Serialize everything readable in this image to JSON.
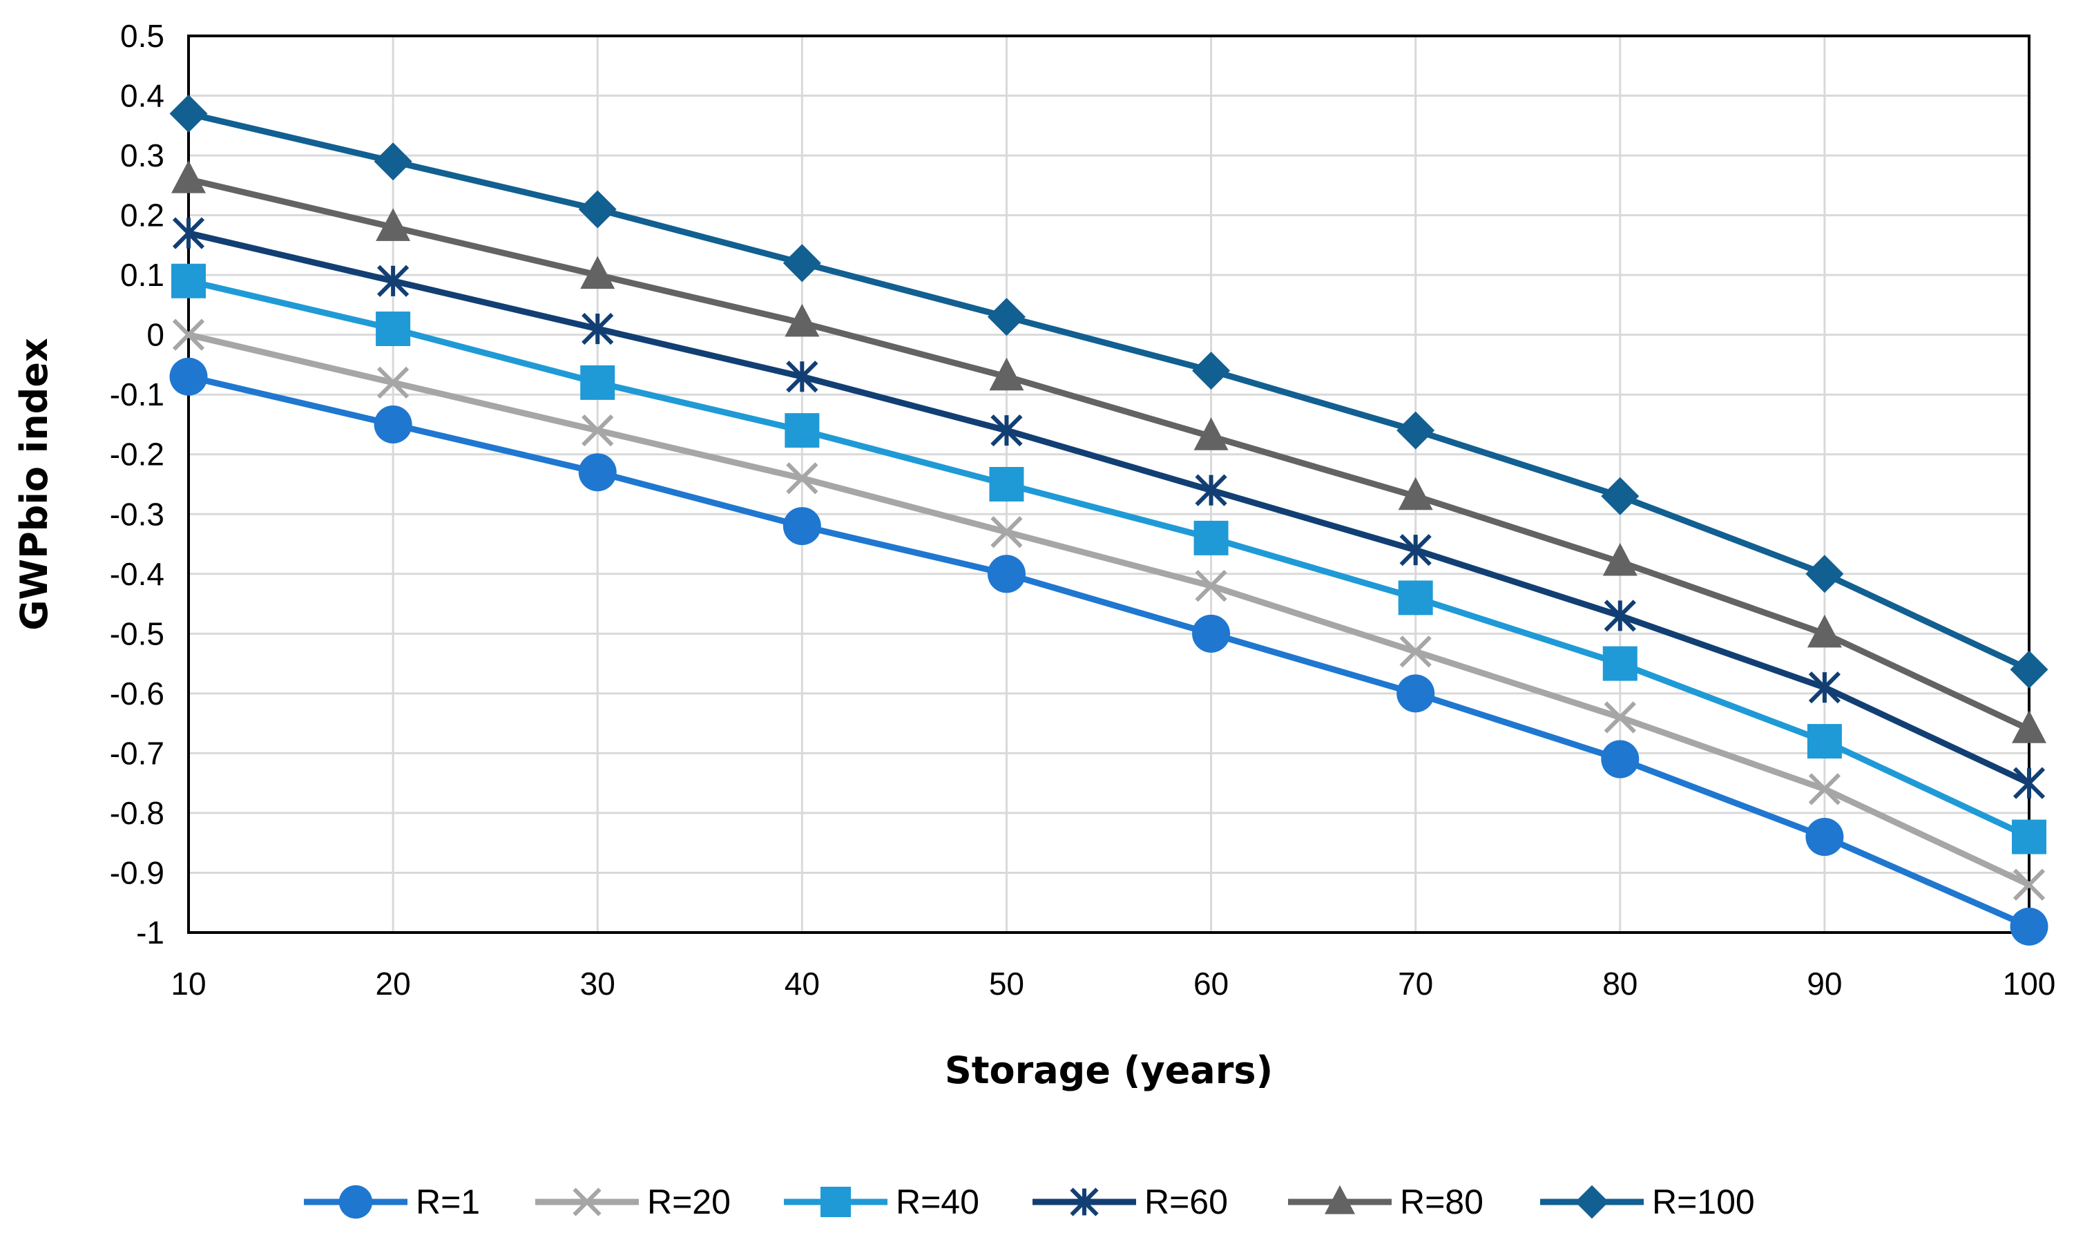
{
  "chart_data": {
    "type": "line",
    "title": "",
    "xlabel": "Storage (years)",
    "ylabel": "GWPbio index",
    "x": [
      10,
      20,
      30,
      40,
      50,
      60,
      70,
      80,
      90,
      100
    ],
    "xlim": [
      10,
      100
    ],
    "ylim": [
      -1,
      0.5
    ],
    "ytick_step": 0.1,
    "x_tick_labels": [
      "10",
      "20",
      "30",
      "40",
      "50",
      "60",
      "70",
      "80",
      "90",
      "100"
    ],
    "y_tick_labels": [
      "0.5",
      "0.4",
      "0.3",
      "0.2",
      "0.1",
      "0",
      "-0.1",
      "-0.2",
      "-0.3",
      "-0.4",
      "-0.5",
      "-0.6",
      "-0.7",
      "-0.8",
      "-0.9",
      "-1"
    ],
    "grid": true,
    "legend_position": "bottom",
    "series": [
      {
        "name": "R=1",
        "marker": "circle",
        "color": "#1f77d0",
        "values": [
          -0.07,
          -0.15,
          -0.23,
          -0.32,
          -0.4,
          -0.5,
          -0.6,
          -0.71,
          -0.84,
          -0.99
        ]
      },
      {
        "name": "R=20",
        "marker": "x",
        "color": "#a6a6a6",
        "values": [
          0.0,
          -0.08,
          -0.16,
          -0.24,
          -0.33,
          -0.42,
          -0.53,
          -0.64,
          -0.76,
          -0.92
        ]
      },
      {
        "name": "R=40",
        "marker": "square",
        "color": "#1f9ad6",
        "values": [
          0.09,
          0.01,
          -0.08,
          -0.16,
          -0.25,
          -0.34,
          -0.44,
          -0.55,
          -0.68,
          -0.84
        ]
      },
      {
        "name": "R=60",
        "marker": "star",
        "color": "#123f73",
        "values": [
          0.17,
          0.09,
          0.01,
          -0.07,
          -0.16,
          -0.26,
          -0.36,
          -0.47,
          -0.59,
          -0.75
        ]
      },
      {
        "name": "R=80",
        "marker": "triangle",
        "color": "#636363",
        "values": [
          0.26,
          0.18,
          0.1,
          0.02,
          -0.07,
          -0.17,
          -0.27,
          -0.38,
          -0.5,
          -0.66
        ]
      },
      {
        "name": "R=100",
        "marker": "diamond",
        "color": "#125f91",
        "values": [
          0.37,
          0.29,
          0.21,
          0.12,
          0.03,
          -0.06,
          -0.16,
          -0.27,
          -0.4,
          -0.56
        ]
      }
    ]
  }
}
